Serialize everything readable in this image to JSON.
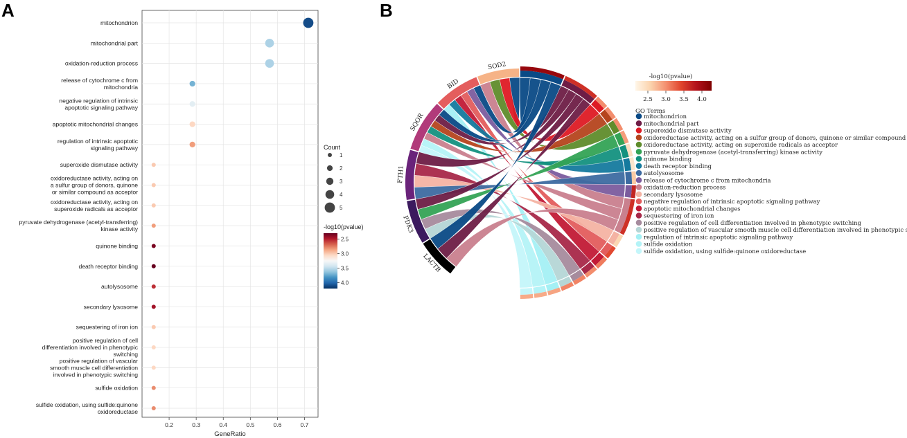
{
  "panels": {
    "a": "A",
    "b": "B"
  },
  "chart_data": [
    {
      "type": "scatter",
      "panel": "A",
      "xlabel": "GeneRatio",
      "xlim": [
        0.1,
        0.75
      ],
      "xticks": [
        "0.2",
        "0.3",
        "0.4",
        "0.5",
        "0.6",
        "0.7"
      ],
      "xtick_values": [
        0.2,
        0.3,
        0.4,
        0.5,
        0.6,
        0.7
      ],
      "points": [
        {
          "term": [
            "mitochondrion"
          ],
          "x": 0.714,
          "count": 5,
          "pvalue": 4.1
        },
        {
          "term": [
            "mitochondrial part"
          ],
          "x": 0.571,
          "count": 4,
          "pvalue": 3.55
        },
        {
          "term": [
            "oxidation-reduction process"
          ],
          "x": 0.571,
          "count": 4,
          "pvalue": 3.55
        },
        {
          "term": [
            "release of cytochrome c from",
            "mitochondria"
          ],
          "x": 0.286,
          "count": 2,
          "pvalue": 3.7
        },
        {
          "term": [
            "negative regulation of intrinsic",
            "apoptotic signaling pathway"
          ],
          "x": 0.286,
          "count": 2,
          "pvalue": 3.35
        },
        {
          "term": [
            "apoptotic mitochondrial changes"
          ],
          "x": 0.286,
          "count": 2,
          "pvalue": 3.05
        },
        {
          "term": [
            "regulation of intrinsic apoptotic",
            "signaling pathway"
          ],
          "x": 0.286,
          "count": 2,
          "pvalue": 2.85
        },
        {
          "term": [
            "superoxide dismutase activity"
          ],
          "x": 0.143,
          "count": 1,
          "pvalue": 3.0
        },
        {
          "term": [
            "oxidoreductase activity, acting on",
            "a sulfur group of donors, quinone",
            "or similar compound as acceptor"
          ],
          "x": 0.143,
          "count": 1,
          "pvalue": 3.0
        },
        {
          "term": [
            "oxidoreductase activity, acting on",
            "superoxide radicals as acceptor"
          ],
          "x": 0.143,
          "count": 1,
          "pvalue": 3.0
        },
        {
          "term": [
            "pyruvate dehydrogenase (acetyl-transferring)",
            "kinase activity"
          ],
          "x": 0.143,
          "count": 1,
          "pvalue": 2.85
        },
        {
          "term": [
            "quinone binding"
          ],
          "x": 0.143,
          "count": 1,
          "pvalue": 2.35
        },
        {
          "term": [
            "death receptor binding"
          ],
          "x": 0.143,
          "count": 1,
          "pvalue": 2.3
        },
        {
          "term": [
            "autolysosome"
          ],
          "x": 0.143,
          "count": 1,
          "pvalue": 2.55
        },
        {
          "term": [
            "secondary lysosome"
          ],
          "x": 0.143,
          "count": 1,
          "pvalue": 2.45
        },
        {
          "term": [
            "sequestering of iron ion"
          ],
          "x": 0.143,
          "count": 1,
          "pvalue": 3.0
        },
        {
          "term": [
            "positive regulation of cell",
            "differentiation involved in phenotypic",
            "switching"
          ],
          "x": 0.143,
          "count": 1,
          "pvalue": 3.05
        },
        {
          "term": [
            "positive regulation of vascular",
            "smooth muscle cell differentiation",
            "involved in phenotypic switching"
          ],
          "x": 0.143,
          "count": 1,
          "pvalue": 3.05
        },
        {
          "term": [
            "sulfide oxidation"
          ],
          "x": 0.143,
          "count": 1,
          "pvalue": 2.8
        },
        {
          "term": [
            "sulfide oxidation, using sulfide:quinone",
            "oxidoreductase"
          ],
          "x": 0.143,
          "count": 1,
          "pvalue": 2.8
        }
      ],
      "size_legend": {
        "title": "Count",
        "values": [
          1,
          2,
          3,
          4,
          5
        ]
      },
      "color_legend": {
        "title": "-log10(pvalue)",
        "range": [
          2.3,
          4.2
        ],
        "ticks": [
          2.5,
          3.0,
          3.5,
          4.0
        ],
        "tick_labels": [
          "2.5",
          "3.0",
          "3.5",
          "4.0"
        ],
        "colors": [
          "#67001f",
          "#b2182b",
          "#d6604d",
          "#f4a582",
          "#fddbc7",
          "#f7f7f7",
          "#d1e5f0",
          "#92c5de",
          "#4393c3",
          "#2166ac",
          "#053061"
        ]
      }
    },
    {
      "type": "chord",
      "panel": "B",
      "genes": [
        "SOD2",
        "BID",
        "SQOR",
        "FTH1",
        "PDK3",
        "LACTB"
      ],
      "gene_colors": [
        "#f6b387",
        "#e45d5d",
        "#b13a7a",
        "#6a237a",
        "#3b1a5e",
        "#000000"
      ],
      "gene_spans_deg": [
        [
          0,
          22
        ],
        [
          22,
          46
        ],
        [
          46,
          73
        ],
        [
          73,
          99
        ],
        [
          99,
          122
        ],
        [
          122,
          143
        ]
      ],
      "colorbar": {
        "title": "-log10(pvalue)",
        "ticks": [
          "2.5",
          "3.0",
          "3.5",
          "4.0"
        ],
        "colors": [
          "#fff6e8",
          "#fbd3ad",
          "#f49070",
          "#e0452d",
          "#b3121c",
          "#7f0000"
        ]
      },
      "go_title": "GO Terms",
      "go_terms": [
        {
          "label": "mitochondrion",
          "color": "#0a4a86"
        },
        {
          "label": "mitochondrial part",
          "color": "#6e1d46"
        },
        {
          "label": "superoxide dismutase activity",
          "color": "#de1a24"
        },
        {
          "label": "oxidoreductase activity, acting on a sulfur group of donors, quinone or similar compound as acceptor",
          "color": "#b5441d"
        },
        {
          "label": "oxidoreductase activity, acting on superoxide radicals as acceptor",
          "color": "#5f8c2b"
        },
        {
          "label": "pyruvate dehydrogenase (acetyl-transferring) kinase activity",
          "color": "#34a355"
        },
        {
          "label": "quinone binding",
          "color": "#14917f"
        },
        {
          "label": "death receptor binding",
          "color": "#157a9e"
        },
        {
          "label": "autolysosome",
          "color": "#3d6ba1"
        },
        {
          "label": "release of cytochrome c from mitochondria",
          "color": "#7b5c9e"
        },
        {
          "label": "oxidation-reduction process",
          "color": "#c9808e"
        },
        {
          "label": "secondary lysosome",
          "color": "#f4b3a3"
        },
        {
          "label": "negative regulation of intrinsic apoptotic signaling pathway",
          "color": "#e35d5d"
        },
        {
          "label": "apoptotic mitochondrial changes",
          "color": "#c21a36"
        },
        {
          "label": "sequestering of iron ion",
          "color": "#a82849"
        },
        {
          "label": "positive regulation of cell differentiation involved in phenotypic switching",
          "color": "#a68b9d"
        },
        {
          "label": "positive regulation of vascular smooth muscle cell differentiation involved in phenotypic switching",
          "color": "#b5d6d6"
        },
        {
          "label": "regulation of intrinsic apoptotic signaling pathway",
          "color": "#a4f0f4"
        },
        {
          "label": "sulfide oxidation",
          "color": "#b4f3f7"
        },
        {
          "label": "sulfide oxidation, using sulfide:quinone oxidoreductase",
          "color": "#c4f6fa"
        }
      ],
      "term_arcs": [
        {
          "term": 0,
          "span": [
            0,
            23
          ],
          "heat": 4.1
        },
        {
          "term": 1,
          "span": [
            23,
            42
          ],
          "heat": 3.6
        },
        {
          "term": 2,
          "span": [
            42,
            49
          ],
          "heat": 3.0
        },
        {
          "term": 3,
          "span": [
            49,
            56
          ],
          "heat": 3.0
        },
        {
          "term": 4,
          "span": [
            56,
            63
          ],
          "heat": 3.0
        },
        {
          "term": 5,
          "span": [
            63,
            70
          ],
          "heat": 2.9
        },
        {
          "term": 6,
          "span": [
            70,
            77
          ],
          "heat": 2.4
        },
        {
          "term": 7,
          "span": [
            77,
            84
          ],
          "heat": 2.3
        },
        {
          "term": 8,
          "span": [
            84,
            91
          ],
          "heat": 2.6
        },
        {
          "term": 9,
          "span": [
            91,
            98
          ],
          "heat": 3.7
        },
        {
          "term": 10,
          "span": [
            98,
            117
          ],
          "heat": 3.6
        },
        {
          "term": 11,
          "span": [
            117,
            124
          ],
          "heat": 2.5
        },
        {
          "term": 12,
          "span": [
            124,
            131
          ],
          "heat": 3.4
        },
        {
          "term": 13,
          "span": [
            131,
            138
          ],
          "heat": 3.1
        },
        {
          "term": 14,
          "span": [
            138,
            145
          ],
          "heat": 3.0
        },
        {
          "term": 15,
          "span": [
            145,
            152
          ],
          "heat": 3.05
        },
        {
          "term": 16,
          "span": [
            152,
            159
          ],
          "heat": 3.05
        },
        {
          "term": 17,
          "span": [
            159,
            166
          ],
          "heat": 2.85
        },
        {
          "term": 18,
          "span": [
            166,
            173
          ],
          "heat": 2.8
        },
        {
          "term": 19,
          "span": [
            173,
            180
          ],
          "heat": 2.8
        }
      ],
      "links": [
        {
          "gene": 0,
          "term": 0
        },
        {
          "gene": 0,
          "term": 2
        },
        {
          "gene": 0,
          "term": 4
        },
        {
          "gene": 0,
          "term": 10
        },
        {
          "gene": 1,
          "term": 0
        },
        {
          "gene": 1,
          "term": 9
        },
        {
          "gene": 1,
          "term": 12
        },
        {
          "gene": 1,
          "term": 13
        },
        {
          "gene": 1,
          "term": 7
        },
        {
          "gene": 1,
          "term": 17
        },
        {
          "gene": 2,
          "term": 0
        },
        {
          "gene": 2,
          "term": 1
        },
        {
          "gene": 2,
          "term": 3
        },
        {
          "gene": 2,
          "term": 6
        },
        {
          "gene": 2,
          "term": 10
        },
        {
          "gene": 2,
          "term": 18
        },
        {
          "gene": 2,
          "term": 19
        },
        {
          "gene": 3,
          "term": 1
        },
        {
          "gene": 3,
          "term": 14
        },
        {
          "gene": 3,
          "term": 11
        },
        {
          "gene": 3,
          "term": 8
        },
        {
          "gene": 4,
          "term": 1
        },
        {
          "gene": 4,
          "term": 5
        },
        {
          "gene": 4,
          "term": 15
        },
        {
          "gene": 4,
          "term": 16
        },
        {
          "gene": 5,
          "term": 0
        },
        {
          "gene": 5,
          "term": 1
        },
        {
          "gene": 5,
          "term": 10
        }
      ]
    }
  ]
}
